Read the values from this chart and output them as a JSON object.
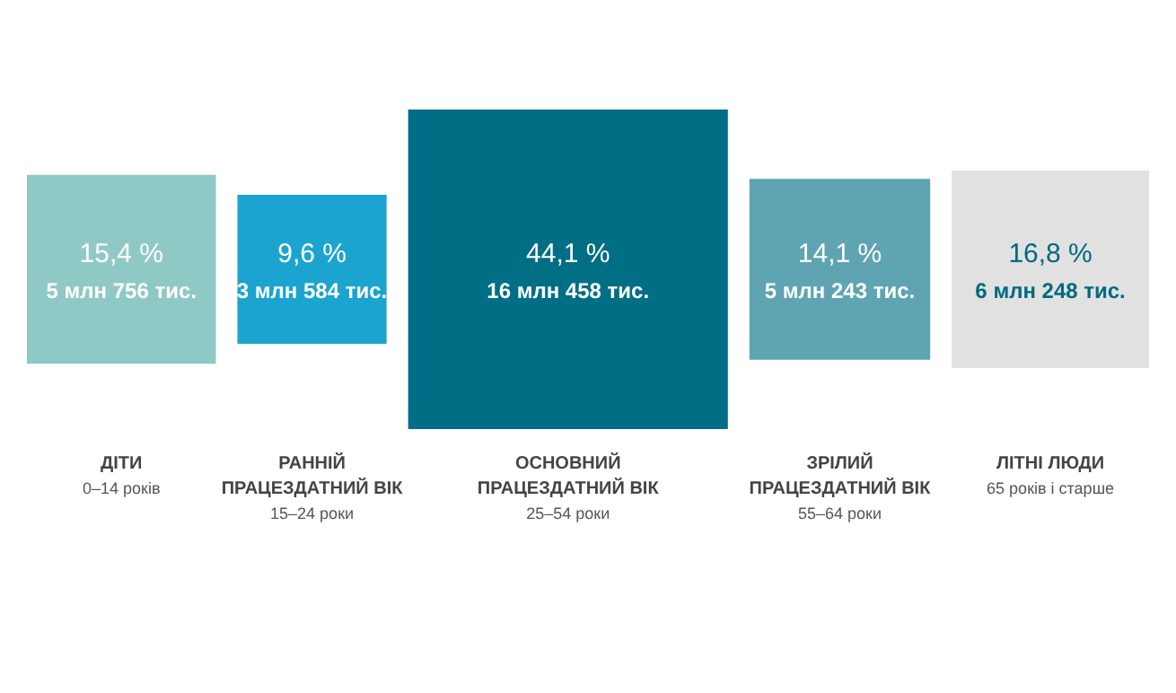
{
  "chart_data": {
    "type": "other",
    "categories": [
      "ДІТИ",
      "РАННІЙ ПРАЦЕЗДАТНИЙ ВІК",
      "ОСНОВНИЙ ПРАЦЕЗДАТНИЙ ВІК",
      "ЗРІЛИЙ ПРАЦЕЗДАТНИЙ ВІК",
      "ЛІТНІ ЛЮДИ"
    ],
    "values": [
      15.4,
      9.6,
      44.1,
      14.1,
      16.8
    ],
    "value_labels": [
      "15,4 %",
      "9,6 %",
      "44,1 %",
      "14,1 %",
      "16,8 %"
    ],
    "colors": [
      "#8fc9c5",
      "#1ba4cf",
      "#006e85",
      "#5fa4b2",
      "#e1e1e1"
    ],
    "annotations": [
      {
        "text": "5 млн 756 тис.",
        "x": "ДІТИ"
      },
      {
        "text": "3 млн 584 тис.",
        "x": "РАННІЙ ПРАЦЕЗДАТНИЙ ВІК"
      },
      {
        "text": "16 млн 458 тис.",
        "x": "ОСНОВНИЙ ПРАЦЕЗДАТНИЙ ВІК"
      },
      {
        "text": "5 млн 243 тис.",
        "x": "ЗРІЛИЙ ПРАЦЕЗДАТНИЙ ВІК"
      },
      {
        "text": "6 млн 248 тис.",
        "x": "ЛІТНІ ЛЮДИ"
      },
      {
        "text": "0–14 років",
        "x": "ДІТИ"
      },
      {
        "text": "15–24 роки",
        "x": "РАННІЙ ПРАЦЕЗДАТНИЙ ВІК"
      },
      {
        "text": "25–54 роки",
        "x": "ОСНОВНИЙ ПРАЦЕЗДАТНИЙ ВІК"
      },
      {
        "text": "55–64 роки",
        "x": "ЗРІЛИЙ ПРАЦЕЗДАТНИЙ ВІК"
      },
      {
        "text": "65 років і старше",
        "x": "ЛІТНІ ЛЮДИ"
      }
    ]
  }
}
